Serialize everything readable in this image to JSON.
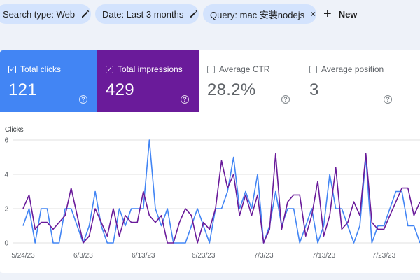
{
  "filters": {
    "search_type": "Search type: Web",
    "date": "Date: Last 3 months",
    "query": "Query: mac 安装nodejs",
    "new_label": "New"
  },
  "metrics": {
    "clicks": {
      "label": "Total clicks",
      "value": "121",
      "checked": true
    },
    "impressions": {
      "label": "Total impressions",
      "value": "429",
      "checked": true
    },
    "ctr": {
      "label": "Average CTR",
      "value": "28.2%",
      "checked": false
    },
    "position": {
      "label": "Average position",
      "value": "3",
      "checked": false
    }
  },
  "colors": {
    "clicks": "#4285f4",
    "impressions": "#6a1b9a"
  },
  "chart_data": {
    "type": "line",
    "ylabel": "Clicks",
    "ylim": [
      0,
      6
    ],
    "yticks": [
      0,
      2,
      4,
      6
    ],
    "xticks": [
      "5/24/23",
      "6/3/23",
      "6/13/23",
      "6/23/23",
      "7/3/23",
      "7/13/23",
      "7/23/23"
    ],
    "series": [
      {
        "values": [
          1,
          2,
          0,
          2,
          2,
          0,
          0,
          2,
          2,
          1,
          0,
          1,
          3,
          1,
          0,
          0,
          2,
          1,
          2,
          2,
          2,
          6,
          2,
          1,
          2,
          0,
          0,
          0,
          1,
          2,
          1,
          0,
          2,
          2,
          3,
          5,
          2,
          3,
          2,
          4,
          0,
          1,
          3,
          1,
          2,
          2,
          0,
          1,
          2,
          0,
          1,
          4,
          2,
          2,
          1,
          0,
          1,
          5,
          0,
          1,
          1,
          2,
          3,
          3,
          1,
          1,
          0
        ]
      },
      {
        "values": [
          2,
          2.8,
          0.8,
          1.2,
          1.2,
          0.8,
          1.2,
          1.6,
          3.2,
          1.6,
          0,
          0.4,
          2,
          1.2,
          0.4,
          2,
          0.4,
          1.6,
          1.2,
          1.2,
          3,
          1.6,
          1.2,
          1.6,
          0,
          0,
          1.2,
          2,
          1.6,
          0,
          1.2,
          0.8,
          2,
          4.8,
          3.2,
          4,
          1.6,
          2.8,
          1.6,
          2.8,
          0,
          0.8,
          5.2,
          0.8,
          2.4,
          2.8,
          2.8,
          0.4,
          1.6,
          3.6,
          0.4,
          1.6,
          4.4,
          0.8,
          1.2,
          2.4,
          1.6,
          5.2,
          1.2,
          0.8,
          0.8,
          1.6,
          2.4,
          3.2,
          3.2,
          1.6,
          2.4
        ]
      }
    ]
  }
}
